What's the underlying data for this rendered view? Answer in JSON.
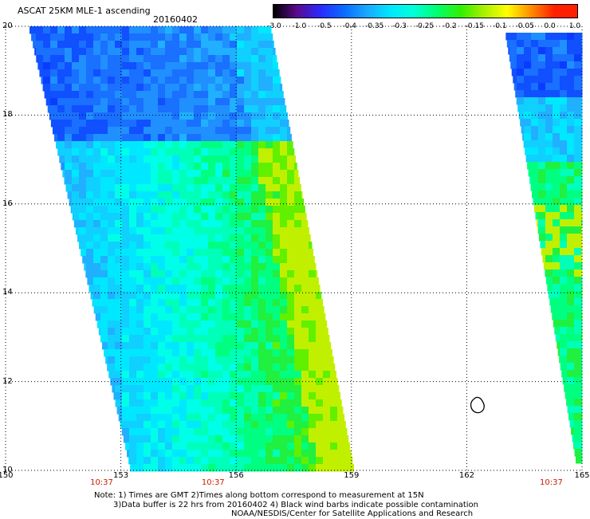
{
  "header": {
    "title": "ASCAT 25KM MLE-1 ascending",
    "date": "20160402"
  },
  "colorbar": {
    "labels": [
      "-3.0",
      "-1.0",
      "-0.5",
      "-0.4",
      "-0.35",
      "-0.3",
      "-0.25",
      "-0.2",
      "-0.15",
      "-0.1",
      "-0.05",
      "0.0",
      "1.0"
    ],
    "colors": [
      "#000000",
      "#5a0a8c",
      "#2a2aff",
      "#0a6aff",
      "#18a8ff",
      "#00e8ff",
      "#00ffd8",
      "#00ff70",
      "#30f000",
      "#aaf000",
      "#ffff00",
      "#ff9000",
      "#ff2000"
    ]
  },
  "map": {
    "lon_ticks": [
      "150",
      "153",
      "156",
      "159",
      "162",
      "165"
    ],
    "lat_ticks": [
      "10",
      "12",
      "14",
      "16",
      "18",
      "20"
    ],
    "lon_range": [
      150,
      165
    ],
    "lat_range": [
      10,
      20
    ],
    "time_labels": [
      {
        "lon": 152.5,
        "text": "10:37"
      },
      {
        "lon": 155.4,
        "text": "10:37"
      },
      {
        "lon": 164.2,
        "text": "10:37"
      }
    ]
  },
  "notes": {
    "line1": "Note: 1) Times are GMT 2)Times along bottom correspond to measurement at 15N",
    "line2": "3)Data buffer is 22 hrs from 20160402 4) Black wind barbs indicate possible contamination",
    "line3": "NOAA/NESDIS/Center for Satellite Applications and Research"
  }
}
